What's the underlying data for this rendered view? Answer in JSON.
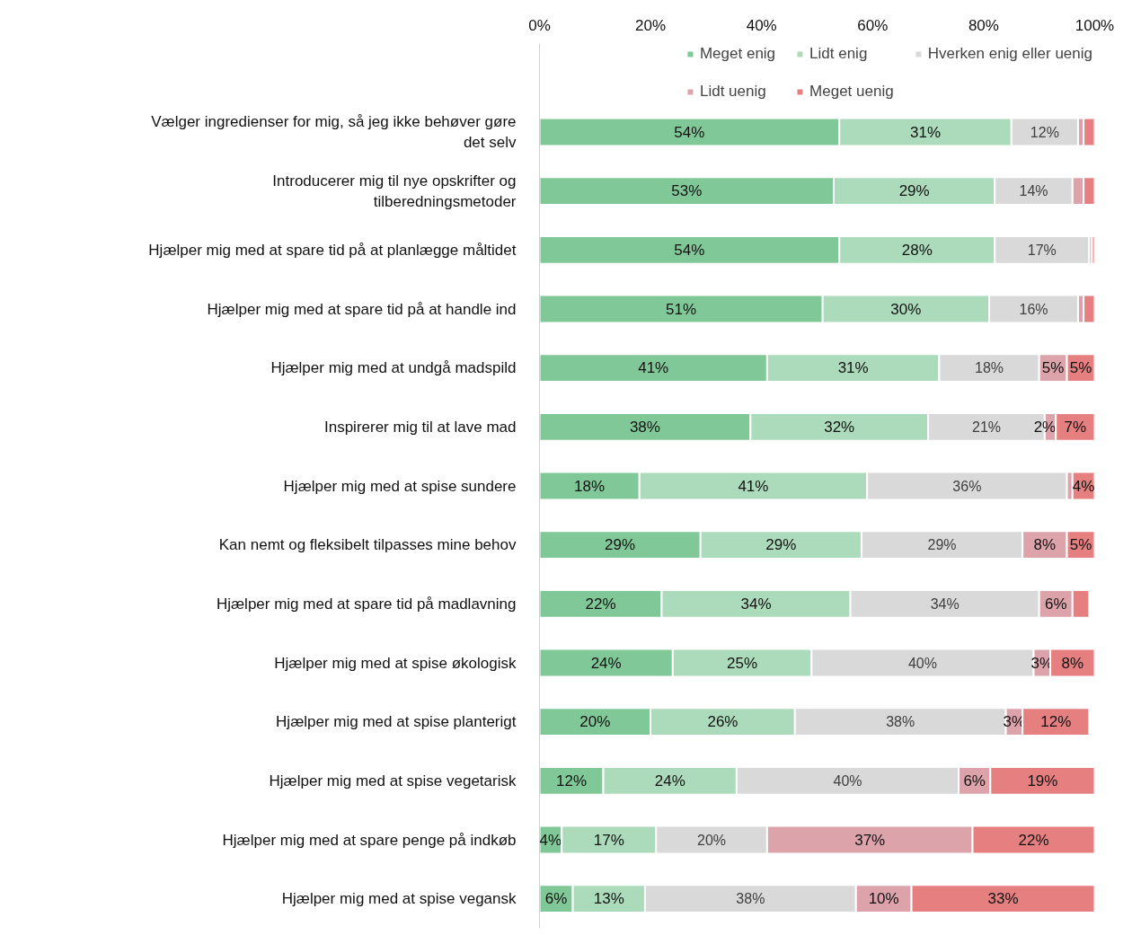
{
  "chart_data": {
    "type": "bar",
    "orientation": "horizontal",
    "stacked": true,
    "legend": "top right",
    "grid": false,
    "categories": [
      "Vælger ingredienser for mig, så jeg ikke behøver gøre\ndet selv",
      "Introducerer mig til nye opskrifter og\ntilberedningsmetoder",
      "Hjælper mig med at spare tid på at planlægge måltidet",
      "Hjælper mig med at spare tid på at handle ind",
      "Hjælper mig med at undgå madspild",
      "Inspirerer mig til at lave mad",
      "Hjælper mig med at spise sundere",
      "Kan nemt og fleksibelt tilpasses mine behov",
      "Hjælper mig med at spare tid på madlavning",
      "Hjælper mig med at spise økologisk",
      "Hjælper mig med at spise planterigt",
      "Hjælper mig med at spise vegetarisk",
      "Hjælper mig med at spare penge på indkøb",
      "Hjælper mig med at spise vegansk"
    ],
    "xlim": [
      0,
      100
    ],
    "xticks": [
      {
        "value": 0,
        "label": "0%"
      },
      {
        "value": 20,
        "label": "20%"
      },
      {
        "value": 40,
        "label": "40%"
      },
      {
        "value": 60,
        "label": "60%"
      },
      {
        "value": 80,
        "label": "80%"
      },
      {
        "value": 100,
        "label": "100%"
      }
    ],
    "series": [
      {
        "name": "Meget enig",
        "color": "#80c897",
        "values": [
          54,
          53,
          54,
          51,
          41,
          38,
          18,
          29,
          22,
          24,
          20,
          11.5,
          4,
          6
        ],
        "value_labels": [
          "54%",
          "53%",
          "54%",
          "51%",
          "41%",
          "38%",
          "18%",
          "29%",
          "22%",
          "24%",
          "20%",
          "12%",
          "4%",
          "6%"
        ]
      },
      {
        "name": "Lidt enig",
        "color": "#acdbbc",
        "values": [
          31,
          29,
          28,
          30,
          31,
          32,
          41,
          29,
          34,
          25,
          26,
          24,
          17,
          13
        ],
        "value_labels": [
          "31%",
          "29%",
          "28%",
          "30%",
          "31%",
          "32%",
          "41%",
          "29%",
          "34%",
          "25%",
          "26%",
          "24%",
          "17%",
          "13%"
        ]
      },
      {
        "name": "Hverken enig eller uenig",
        "color": "#d9d9d9",
        "values": [
          12,
          14,
          17,
          16,
          18,
          21,
          36,
          29,
          34,
          40,
          38,
          40,
          20,
          38
        ],
        "value_labels": [
          "12%",
          "14%",
          "17%",
          "16%",
          "18%",
          "21%",
          "36%",
          "29%",
          "34%",
          "40%",
          "38%",
          "40%",
          "20%",
          "38%"
        ]
      },
      {
        "name": "Lidt uenig",
        "color": "#dca3ab",
        "values": [
          1,
          2,
          0.5,
          1,
          5,
          2,
          1,
          8,
          6,
          3,
          3,
          5.7,
          37,
          10
        ],
        "value_labels": [
          null,
          null,
          null,
          null,
          "5%",
          "2%",
          null,
          "8%",
          "6%",
          "3%",
          "3%",
          "6%",
          "37%",
          "10%"
        ]
      },
      {
        "name": "Meget uenig",
        "color": "#e57f80",
        "values": [
          2,
          2,
          0.5,
          2,
          5,
          7,
          4,
          5,
          3,
          8,
          12,
          18.8,
          22,
          33
        ],
        "value_labels": [
          null,
          null,
          null,
          null,
          "5%",
          "7%",
          "4%",
          "5%",
          null,
          "8%",
          "12%",
          "19%",
          "22%",
          "33%"
        ]
      }
    ]
  }
}
